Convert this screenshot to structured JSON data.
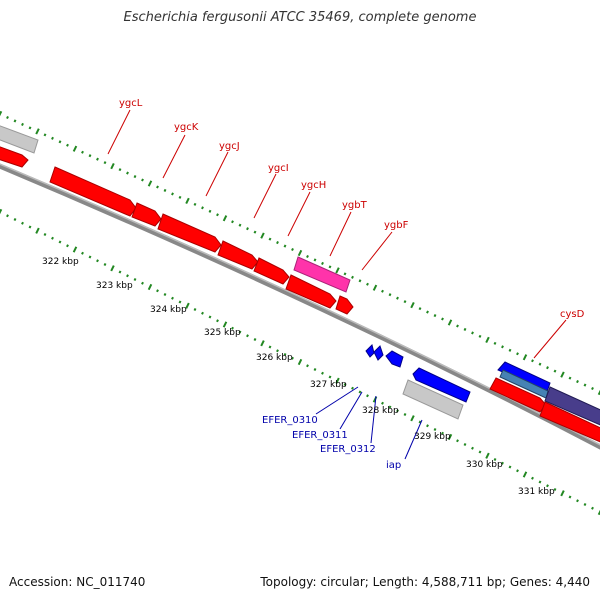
{
  "title": "Escherichia fergusonii ATCC 35469, complete genome",
  "footer": {
    "accession": "Accession: NC_011740",
    "summary": "Topology: circular; Length: 4,588,711 bp; Genes: 4,440"
  },
  "colors": {
    "forward_gene": "#ff0000",
    "reverse_gene": "#0000ff",
    "pseudo_gene": "#ff33aa",
    "other_feature": "#c8c8c8",
    "forward_label": "#cc0000",
    "reverse_label": "#0000aa",
    "tick": "#228822",
    "backbone": "#888888"
  },
  "scale_labels": [
    "322 kbp",
    "323 kbp",
    "324 kbp",
    "325 kbp",
    "326 kbp",
    "327 kbp",
    "328 kbp",
    "329 kbp",
    "330 kbp",
    "331 kbp"
  ],
  "forward_gene_labels": [
    "ygcL",
    "ygcK",
    "ygcJ",
    "ygcI",
    "ygcH",
    "ygbT",
    "ygbF",
    "cysD"
  ],
  "reverse_gene_labels": [
    "EFER_0310",
    "EFER_0311",
    "EFER_0312",
    "iap"
  ]
}
